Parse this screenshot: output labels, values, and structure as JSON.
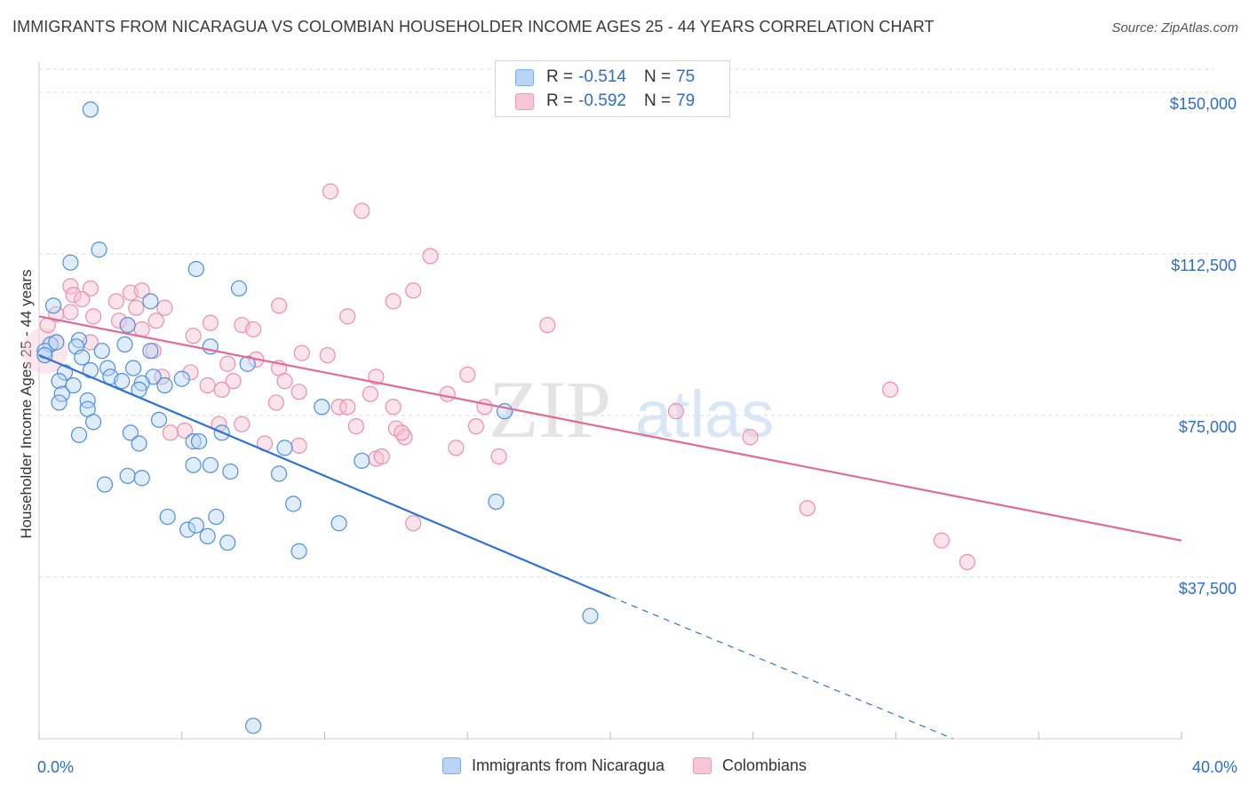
{
  "title": "IMMIGRANTS FROM NICARAGUA VS COLOMBIAN HOUSEHOLDER INCOME AGES 25 - 44 YEARS CORRELATION CHART",
  "source": "Source: ZipAtlas.com",
  "watermark": {
    "zip": "ZIP",
    "atlas": "atlas"
  },
  "legend": {
    "rows": [
      {
        "r_label": "R =",
        "r_value": "-0.514",
        "n_label": "N =",
        "n_value": "75"
      },
      {
        "r_label": "R =",
        "r_value": "-0.592",
        "n_label": "N =",
        "n_value": "79"
      }
    ]
  },
  "bottom_legend": [
    "Immigrants from Nicaragua",
    "Colombians"
  ],
  "colors": {
    "blue": "#4f8fde",
    "blue_line": "#2f72d6",
    "pink": "#ec8fae",
    "pink_line": "#e26a93",
    "axis_text": "#2d6dd0",
    "grid": "#d9d9d9"
  },
  "chart_data": {
    "type": "scatter",
    "title": "IMMIGRANTS FROM NICARAGUA VS COLOMBIAN HOUSEHOLDER INCOME AGES 25 - 44 YEARS CORRELATION CHART",
    "ylabel": "Householder Income Ages 25 - 44 years",
    "xlabel": "",
    "xlim": [
      0,
      40
    ],
    "ylim": [
      0,
      157000
    ],
    "x_tick_labels": [
      "0.0%",
      "40.0%"
    ],
    "y_ticks": [
      37500,
      75000,
      112500,
      150000
    ],
    "y_tick_labels": [
      "$37,500",
      "$75,000",
      "$112,500",
      "$150,000"
    ],
    "grid": true,
    "legend_position": "top-center",
    "series": [
      {
        "name": "Immigrants from Nicaragua",
        "color": "#4f8fde",
        "trend": {
          "x": [
            0,
            20,
            32
          ],
          "y": [
            89000,
            33000,
            0
          ],
          "dashed_from_x": 20
        },
        "points": [
          [
            1.8,
            146000
          ],
          [
            2.1,
            113500
          ],
          [
            1.1,
            110500
          ],
          [
            5.5,
            109000
          ],
          [
            7,
            104500
          ],
          [
            0.5,
            100500
          ],
          [
            3.9,
            101500
          ],
          [
            3.1,
            96000
          ],
          [
            0.4,
            91500
          ],
          [
            0.2,
            90000
          ],
          [
            0.6,
            92000
          ],
          [
            1.4,
            92500
          ],
          [
            1.3,
            91000
          ],
          [
            2.2,
            90000
          ],
          [
            3,
            91500
          ],
          [
            3.9,
            90000
          ],
          [
            6,
            91000
          ],
          [
            7.3,
            87000
          ],
          [
            0.2,
            89000
          ],
          [
            1.5,
            88500
          ],
          [
            1.8,
            85500
          ],
          [
            0.9,
            85000
          ],
          [
            2.4,
            86000
          ],
          [
            3.3,
            86000
          ],
          [
            4,
            84000
          ],
          [
            5,
            83500
          ],
          [
            0.7,
            83000
          ],
          [
            1.2,
            82000
          ],
          [
            2.5,
            84000
          ],
          [
            2.9,
            83000
          ],
          [
            3.6,
            82500
          ],
          [
            4.4,
            82000
          ],
          [
            0.8,
            80000
          ],
          [
            0.7,
            78000
          ],
          [
            1.7,
            78500
          ],
          [
            3.5,
            81000
          ],
          [
            1.7,
            76500
          ],
          [
            1.9,
            73500
          ],
          [
            4.2,
            74000
          ],
          [
            3.2,
            71000
          ],
          [
            1.4,
            70500
          ],
          [
            6.4,
            71000
          ],
          [
            9.9,
            77000
          ],
          [
            5.4,
            69000
          ],
          [
            5.6,
            69000
          ],
          [
            3.5,
            68500
          ],
          [
            8.6,
            67500
          ],
          [
            11.3,
            64500
          ],
          [
            5.4,
            63500
          ],
          [
            6,
            63500
          ],
          [
            6.7,
            62000
          ],
          [
            8.4,
            61500
          ],
          [
            3.1,
            61000
          ],
          [
            3.6,
            60500
          ],
          [
            2.3,
            59000
          ],
          [
            16.3,
            76000
          ],
          [
            16,
            55000
          ],
          [
            8.9,
            54500
          ],
          [
            10.5,
            50000
          ],
          [
            4.5,
            51500
          ],
          [
            6.2,
            51500
          ],
          [
            5.2,
            48500
          ],
          [
            5.5,
            49500
          ],
          [
            5.9,
            47000
          ],
          [
            6.6,
            45500
          ],
          [
            9.1,
            43500
          ],
          [
            19.3,
            28500
          ],
          [
            7.5,
            3000
          ]
        ]
      },
      {
        "name": "Colombians",
        "color": "#ec8fae",
        "trend": {
          "x": [
            0,
            40
          ],
          "y": [
            98000,
            46000
          ]
        },
        "points": [
          [
            10.2,
            127000
          ],
          [
            11.3,
            122500
          ],
          [
            13.7,
            112000
          ],
          [
            1.1,
            105000
          ],
          [
            1.8,
            104500
          ],
          [
            3.2,
            103500
          ],
          [
            3.6,
            104000
          ],
          [
            1.2,
            103000
          ],
          [
            13.1,
            104000
          ],
          [
            1.5,
            102000
          ],
          [
            2.7,
            101500
          ],
          [
            12.4,
            101500
          ],
          [
            1.1,
            99000
          ],
          [
            3.4,
            100000
          ],
          [
            0.6,
            98500
          ],
          [
            8.4,
            100500
          ],
          [
            1.9,
            98000
          ],
          [
            2.8,
            97000
          ],
          [
            4.4,
            100000
          ],
          [
            10.8,
            98000
          ],
          [
            0.3,
            96000
          ],
          [
            4.1,
            97000
          ],
          [
            6,
            96500
          ],
          [
            7.1,
            96000
          ],
          [
            17.8,
            96000
          ],
          [
            3.1,
            96000
          ],
          [
            3.6,
            95000
          ],
          [
            7.5,
            95000
          ],
          [
            5.4,
            93500
          ],
          [
            1.8,
            92000
          ],
          [
            4,
            90000
          ],
          [
            9.2,
            89500
          ],
          [
            10.1,
            89000
          ],
          [
            7.6,
            88000
          ],
          [
            6.6,
            87000
          ],
          [
            8.4,
            86000
          ],
          [
            5.3,
            85000
          ],
          [
            4.3,
            84000
          ],
          [
            11.8,
            84000
          ],
          [
            8.6,
            83000
          ],
          [
            15,
            84500
          ],
          [
            6.8,
            83000
          ],
          [
            5.9,
            82000
          ],
          [
            6.4,
            81000
          ],
          [
            9.1,
            80500
          ],
          [
            11.6,
            80000
          ],
          [
            14.3,
            80000
          ],
          [
            29.8,
            81000
          ],
          [
            8.3,
            78000
          ],
          [
            10.5,
            77000
          ],
          [
            10.8,
            77000
          ],
          [
            12.4,
            77000
          ],
          [
            15.6,
            77000
          ],
          [
            22.3,
            76000
          ],
          [
            6.3,
            73000
          ],
          [
            7.1,
            73000
          ],
          [
            11.1,
            72500
          ],
          [
            12.5,
            72000
          ],
          [
            12.8,
            70000
          ],
          [
            12.7,
            71000
          ],
          [
            4.6,
            71000
          ],
          [
            5.1,
            71500
          ],
          [
            15.3,
            72500
          ],
          [
            24.9,
            70000
          ],
          [
            7.9,
            68500
          ],
          [
            9.1,
            68000
          ],
          [
            14.6,
            67500
          ],
          [
            11.8,
            65000
          ],
          [
            12,
            65500
          ],
          [
            16.1,
            65500
          ],
          [
            26.9,
            53500
          ],
          [
            13.1,
            50000
          ],
          [
            31.6,
            46000
          ],
          [
            32.5,
            41000
          ]
        ]
      }
    ]
  }
}
